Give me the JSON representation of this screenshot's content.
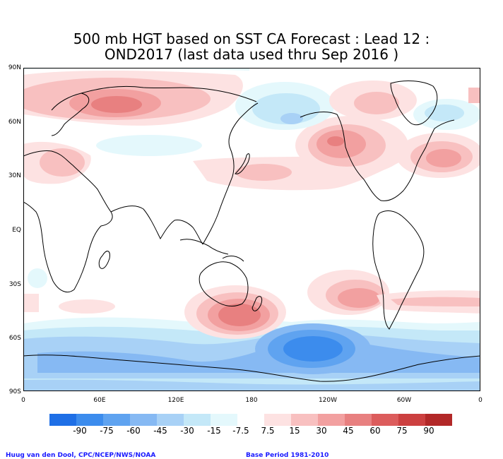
{
  "title": {
    "line1": "500 mb HGT based on SST CA Forecast : Lead 12 :",
    "line2": "OND2017 (last data used thru Sep 2016 )"
  },
  "lat_labels": [
    "90N",
    "60N",
    "30N",
    "EQ",
    "30S",
    "60S",
    "90S"
  ],
  "lon_labels": [
    "0",
    "60E",
    "120E",
    "180",
    "120W",
    "60W",
    "0"
  ],
  "colorbar": {
    "labels": [
      "-90",
      "-75",
      "-60",
      "-45",
      "-30",
      "-15",
      "-7.5",
      "7.5",
      "15",
      "30",
      "45",
      "60",
      "75",
      "90"
    ],
    "colors": [
      "#1e6fe6",
      "#3c8ced",
      "#5fa3f0",
      "#86b9f3",
      "#a8d1f6",
      "#c4e8f8",
      "#e4f8fc",
      "#ffffff",
      "#fde2e2",
      "#f8c0c0",
      "#f2a0a0",
      "#e88080",
      "#dc5c5c",
      "#cc4040",
      "#b22828"
    ]
  },
  "footer": {
    "left": "Huug van den Dool, CPC/NCEP/NWS/NOAA",
    "right": "Base Period 1981-2010"
  }
}
